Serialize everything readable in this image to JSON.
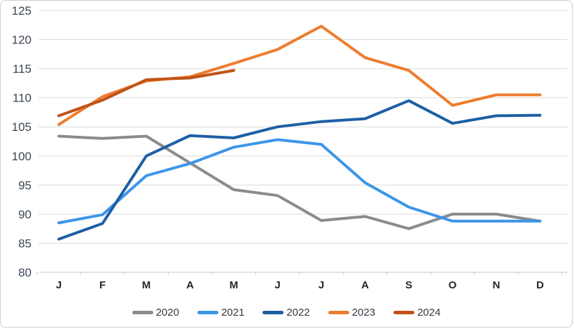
{
  "chart_data": {
    "type": "line",
    "title": "",
    "xlabel": "",
    "ylabel": "",
    "categories": [
      "J",
      "F",
      "M",
      "A",
      "M",
      "J",
      "J",
      "A",
      "S",
      "O",
      "N",
      "D"
    ],
    "ylim": [
      80,
      125
    ],
    "yticks": [
      80,
      85,
      90,
      95,
      100,
      105,
      110,
      115,
      120,
      125
    ],
    "grid": true,
    "legend_position": "bottom",
    "series": [
      {
        "name": "2020",
        "color": "#8b8b8b",
        "values": [
          103.4,
          103.0,
          103.4,
          98.8,
          94.2,
          93.2,
          88.9,
          89.6,
          87.5,
          90.0,
          90.0,
          88.8
        ]
      },
      {
        "name": "2021",
        "color": "#3c96e8",
        "values": [
          88.5,
          89.9,
          96.6,
          98.7,
          101.5,
          102.8,
          102.0,
          95.4,
          91.2,
          88.8,
          88.8,
          88.8
        ]
      },
      {
        "name": "2022",
        "color": "#1d5fa5",
        "values": [
          85.7,
          88.4,
          100.0,
          103.5,
          103.1,
          105.0,
          105.9,
          106.4,
          109.5,
          105.6,
          106.9,
          107.0
        ]
      },
      {
        "name": "2023",
        "color": "#ee7d2f",
        "values": [
          105.4,
          110.2,
          112.9,
          113.6,
          115.9,
          118.3,
          122.3,
          116.9,
          114.7,
          108.7,
          110.5,
          110.5
        ]
      },
      {
        "name": "2024",
        "color": "#c05318",
        "values": [
          106.9,
          109.6,
          113.1,
          113.4,
          114.7,
          null,
          null,
          null,
          null,
          null,
          null,
          null
        ]
      }
    ],
    "colors": {
      "gridline": "#dcdcdc",
      "axis_line": "#c8c8c8",
      "tick_mark": "#c8c8c8",
      "background": "#ffffff"
    }
  }
}
